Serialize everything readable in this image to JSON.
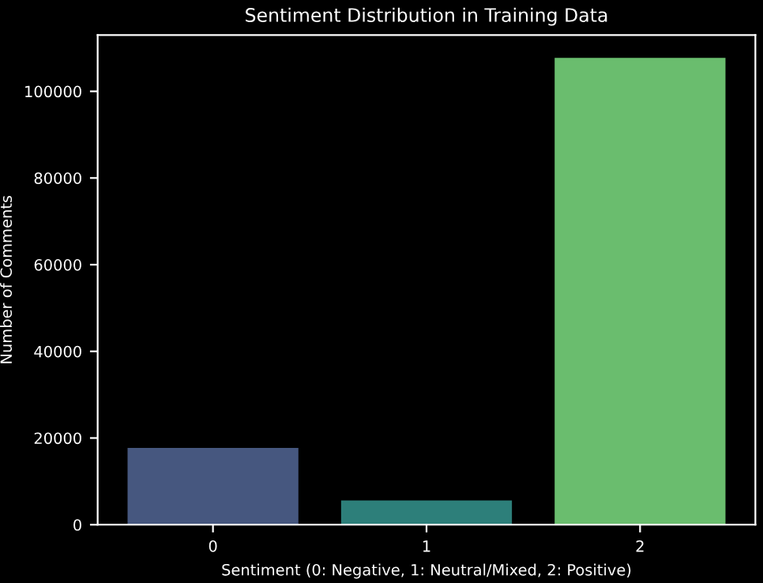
{
  "chart_data": {
    "type": "bar",
    "title": "Sentiment Distribution in Training Data",
    "xlabel": "Sentiment (0: Negative, 1: Neutral/Mixed, 2: Positive)",
    "ylabel": "Number of Comments",
    "categories": [
      "0",
      "1",
      "2"
    ],
    "values": [
      17700,
      5600,
      107700
    ],
    "colors": [
      "#46577f",
      "#2d7f7a",
      "#6abd6e"
    ],
    "ylim": [
      0,
      113000
    ],
    "yticks": [
      0,
      20000,
      40000,
      60000,
      80000,
      100000
    ],
    "grid": false
  }
}
